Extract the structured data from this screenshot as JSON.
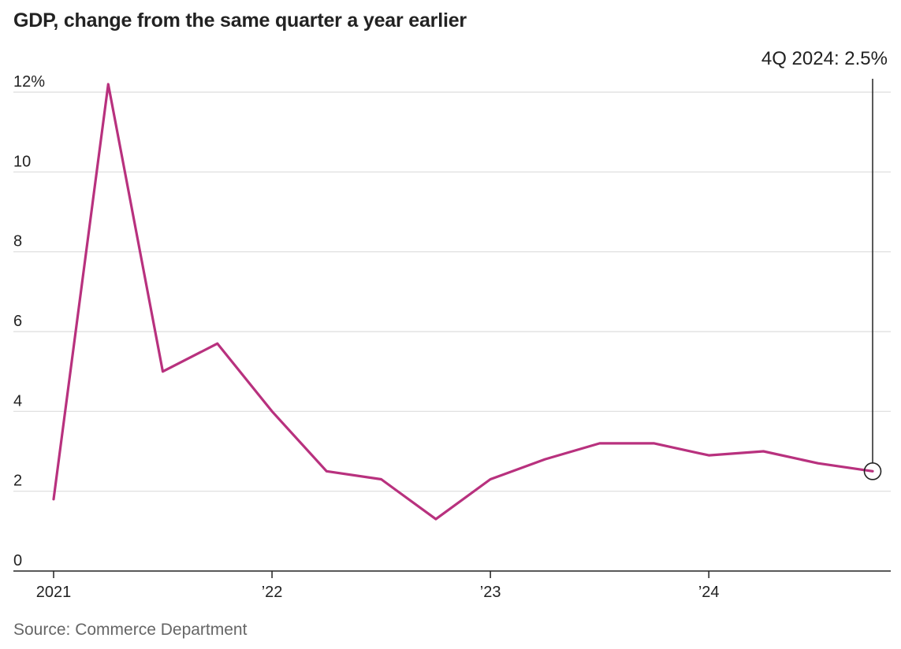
{
  "title": "GDP, change from the same quarter a year earlier",
  "source": "Source: Commerce Department",
  "chart_data": {
    "type": "line",
    "title": "GDP, change from the same quarter a year earlier",
    "xlabel": "",
    "ylabel": "",
    "x": [
      "1Q 2021",
      "2Q 2021",
      "3Q 2021",
      "4Q 2021",
      "1Q 2022",
      "2Q 2022",
      "3Q 2022",
      "4Q 2022",
      "1Q 2023",
      "2Q 2023",
      "3Q 2023",
      "4Q 2023",
      "1Q 2024",
      "2Q 2024",
      "3Q 2024",
      "4Q 2024"
    ],
    "series": [
      {
        "values": [
          1.8,
          12.2,
          5.0,
          5.7,
          4.0,
          2.5,
          2.3,
          1.3,
          2.3,
          2.8,
          3.2,
          3.2,
          2.9,
          3.0,
          2.7,
          2.5
        ]
      }
    ],
    "ylim": [
      0,
      12
    ],
    "yticks": [
      {
        "value": 0,
        "label": "0"
      },
      {
        "value": 2,
        "label": "2"
      },
      {
        "value": 4,
        "label": "4"
      },
      {
        "value": 6,
        "label": "6"
      },
      {
        "value": 8,
        "label": "8"
      },
      {
        "value": 10,
        "label": "10"
      },
      {
        "value": 12,
        "label": "12%"
      }
    ],
    "xticks": [
      {
        "index": 0,
        "label": "2021"
      },
      {
        "index": 4,
        "label": "’22"
      },
      {
        "index": 8,
        "label": "’23"
      },
      {
        "index": 12,
        "label": "’24"
      }
    ],
    "annotation": {
      "index": 15,
      "label": "4Q 2024: 2.5%"
    },
    "grid": true,
    "colors": {
      "line": "#b8317e",
      "grid": "#dddddd",
      "axis": "#222222",
      "marker": "#222222"
    }
  }
}
